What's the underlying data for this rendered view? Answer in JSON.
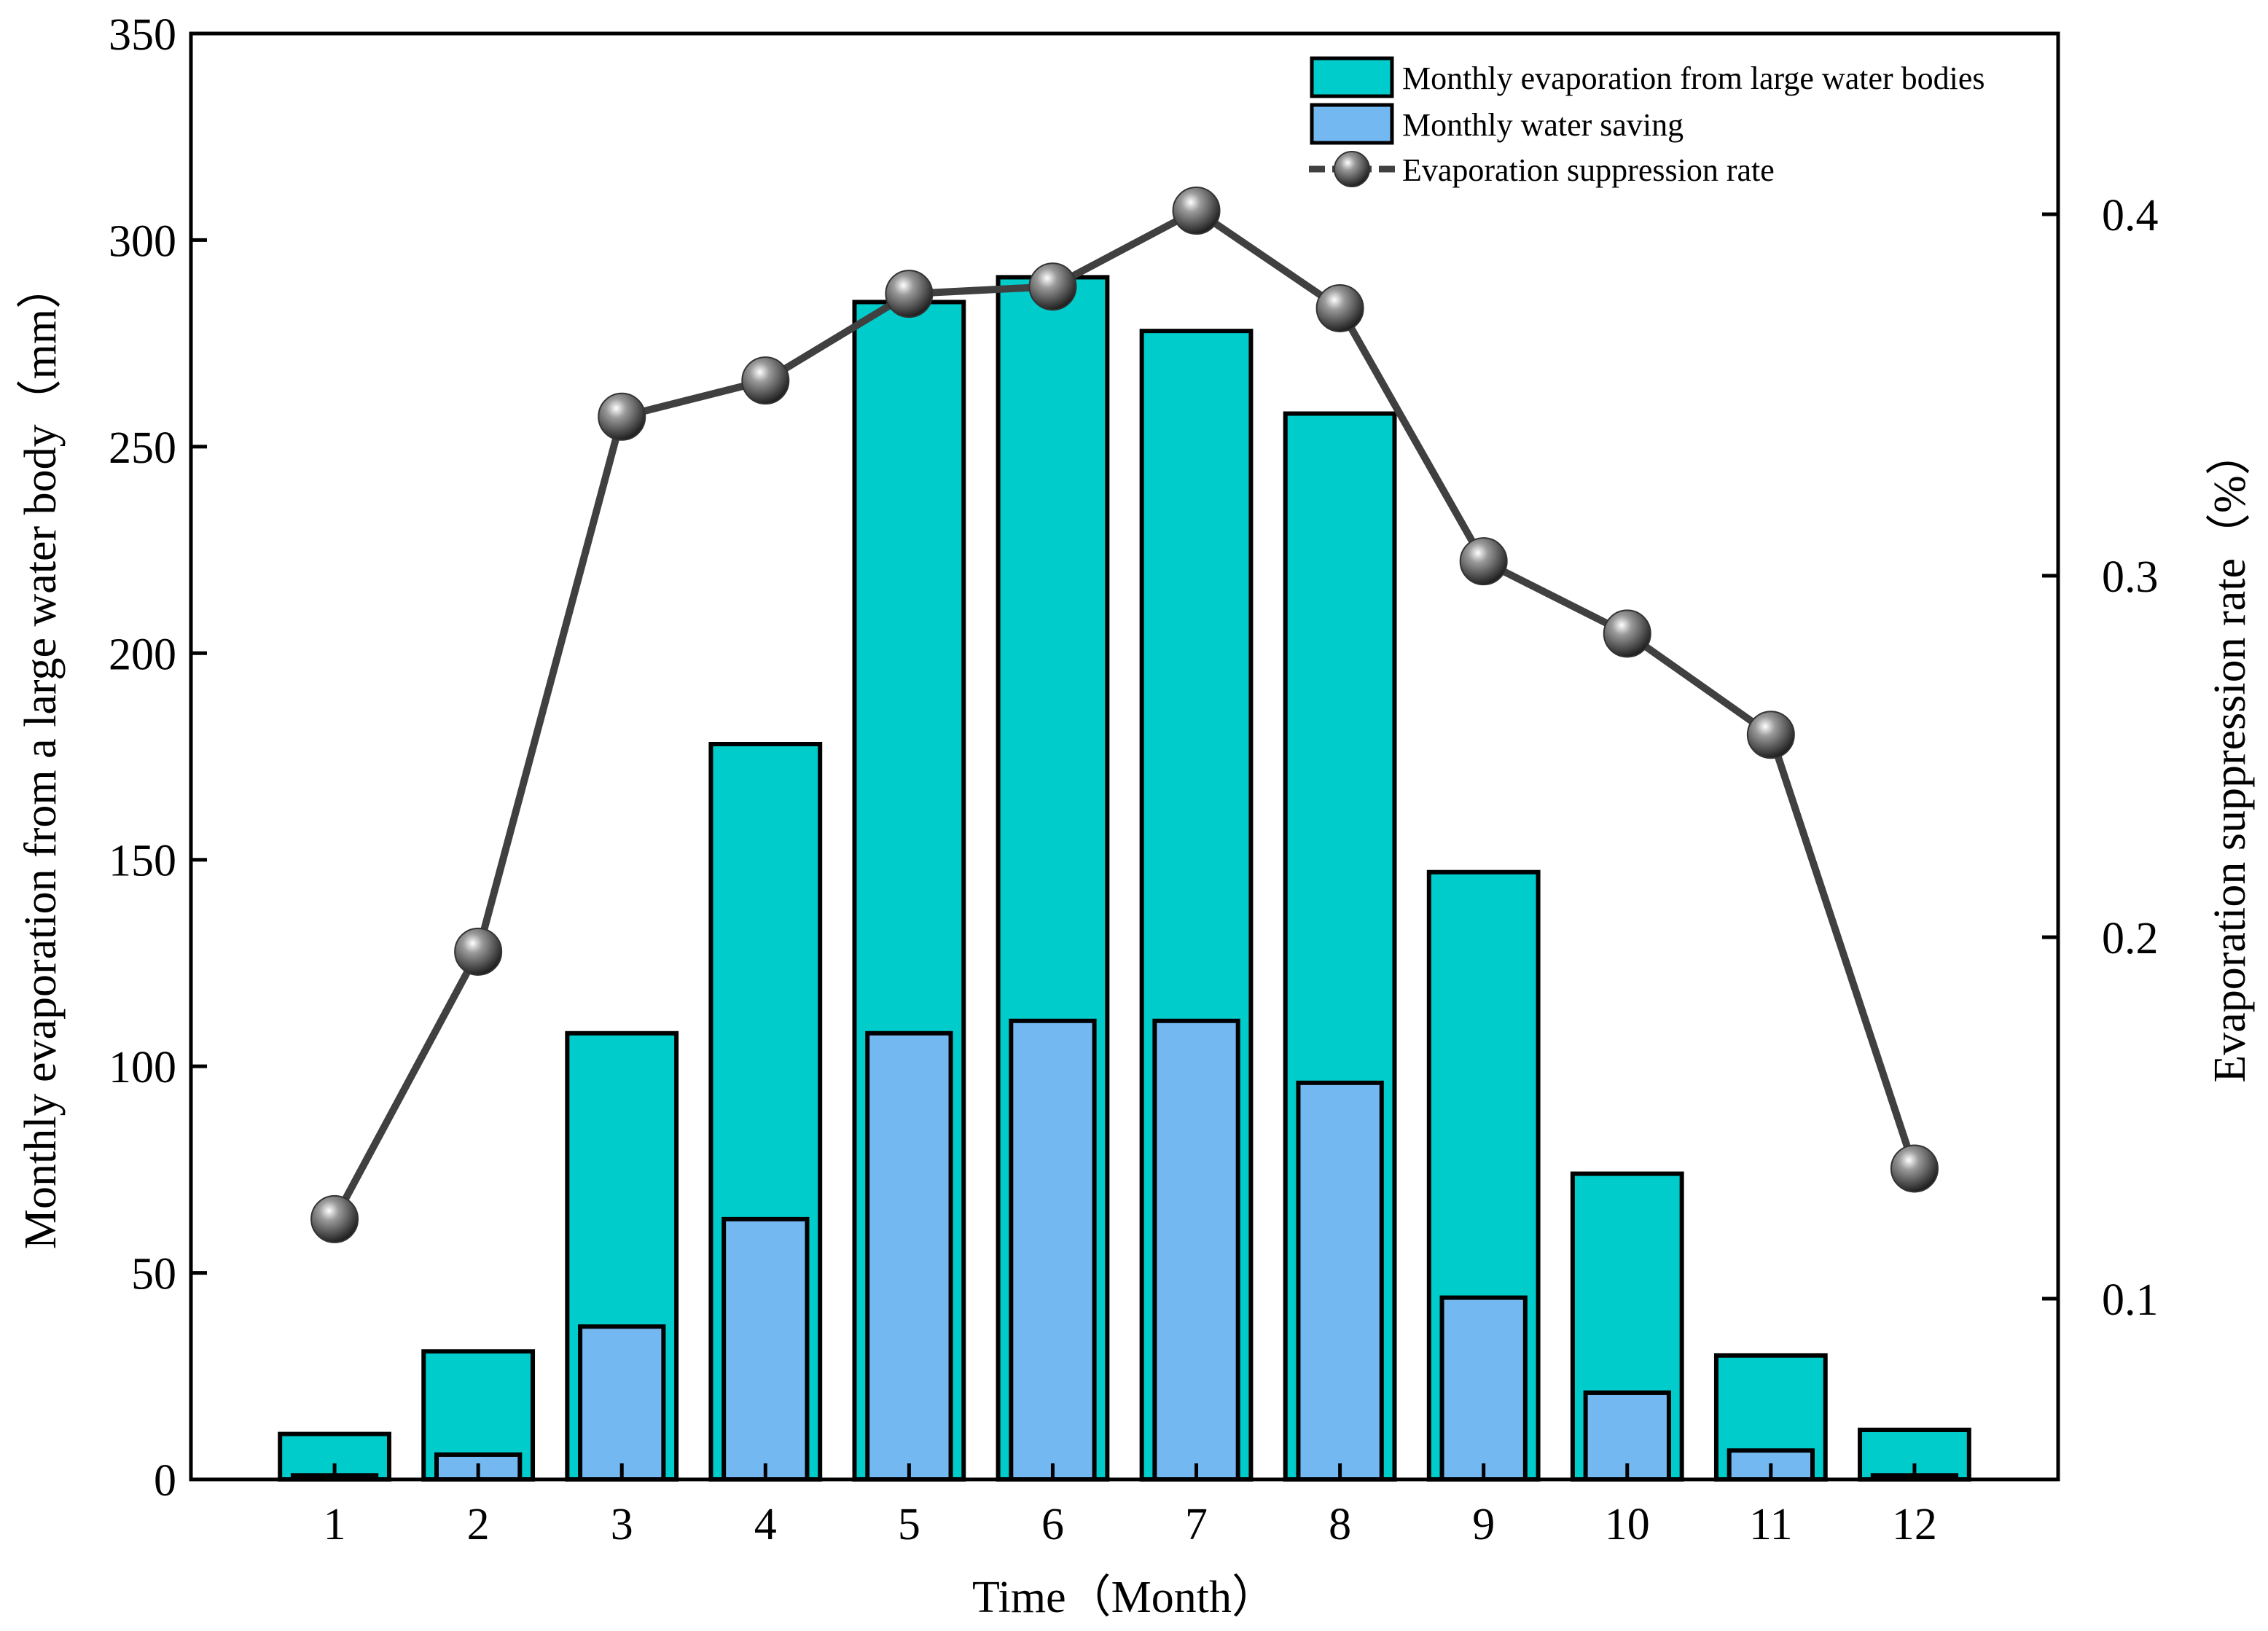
{
  "chart_data": {
    "type": "bar+line",
    "categories": [
      "1",
      "2",
      "3",
      "4",
      "5",
      "6",
      "7",
      "8",
      "9",
      "10",
      "11",
      "12"
    ],
    "series": [
      {
        "name": "Monthly evaporation from large water bodies",
        "kind": "bar",
        "axis": "left",
        "color": "#00CCCC",
        "values": [
          11,
          31,
          108,
          178,
          285,
          291,
          278,
          258,
          147,
          74,
          30,
          12
        ]
      },
      {
        "name": "Monthly water saving",
        "kind": "bar",
        "axis": "left",
        "color": "#74B8F2",
        "values": [
          1,
          6,
          37,
          63,
          108,
          111,
          111,
          96,
          44,
          21,
          7,
          1
        ]
      },
      {
        "name": "Evaporation suppression rate",
        "kind": "line",
        "axis": "right",
        "color": "#404040",
        "values": [
          0.122,
          0.196,
          0.344,
          0.354,
          0.378,
          0.38,
          0.401,
          0.374,
          0.304,
          0.284,
          0.256,
          0.136
        ]
      }
    ],
    "xlabel": "Time（Month）",
    "ylabel": "Monthly evaporation from a large water body（mm）",
    "y2label": "Evaporation suppression rate（%）",
    "ylim": [
      0,
      350
    ],
    "yticks": [
      0,
      50,
      100,
      150,
      200,
      250,
      300,
      350
    ],
    "y2lim": [
      0.05,
      0.45
    ],
    "y2ticks": [
      "0.1",
      "0.2",
      "0.3",
      "0.4"
    ],
    "legend_position": "top-right",
    "grid": false
  }
}
